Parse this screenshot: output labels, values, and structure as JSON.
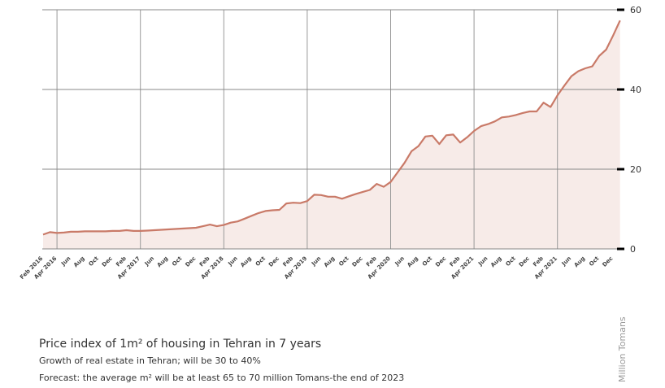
{
  "chart_data": {
    "type": "line",
    "title": "Price index of 1m² of housing in Tehran in 7 years",
    "subtitle": "Growth of real estate in Tehran; will be 30 to 40%",
    "annotation": "Forecast: the average m² will be at least 65 to 70 million Tomans-the end of 2023",
    "y_label": "Million Tomans",
    "categories": [
      "Feb 2016",
      null,
      "Apr 2016",
      null,
      "Jun",
      null,
      "Aug",
      null,
      "Oct",
      null,
      "Dec",
      null,
      "Feb",
      null,
      "Apr 2017",
      null,
      "Jun",
      null,
      "Aug",
      null,
      "Oct",
      null,
      "Dec",
      null,
      "Feb",
      null,
      "Apr 2018",
      null,
      "Jun",
      null,
      "Aug",
      null,
      "Oct",
      null,
      "Dec",
      null,
      "Feb",
      null,
      "Apr 2019",
      null,
      "Jun",
      null,
      "Aug",
      null,
      "Oct",
      null,
      "Dec",
      null,
      "Feb",
      null,
      "Apr 2020",
      null,
      "Jun",
      null,
      "Aug",
      null,
      "Oct",
      null,
      "Dec",
      null,
      "Feb",
      null,
      "Apr 2021",
      null,
      "Jun",
      null,
      "Aug",
      null,
      "Oct",
      null,
      "Dec",
      null,
      "Feb",
      null,
      "Apr 2021",
      null,
      "Jun",
      null,
      "Aug",
      null,
      "Oct",
      null,
      "Dec",
      null
    ],
    "values": [
      3.6,
      4.2,
      4.0,
      4.1,
      4.3,
      4.3,
      4.4,
      4.4,
      4.4,
      4.4,
      4.5,
      4.5,
      4.7,
      4.5,
      4.5,
      4.6,
      4.7,
      4.8,
      4.9,
      5.0,
      5.1,
      5.2,
      5.3,
      5.7,
      6.1,
      5.7,
      6.0,
      6.6,
      6.9,
      7.6,
      8.3,
      9.0,
      9.5,
      9.7,
      9.8,
      11.4,
      11.6,
      11.5,
      12.0,
      13.6,
      13.5,
      13.1,
      13.1,
      12.6,
      13.2,
      13.8,
      14.3,
      14.8,
      16.3,
      15.6,
      16.8,
      19.2,
      21.6,
      24.5,
      25.8,
      28.2,
      28.4,
      26.3,
      28.5,
      28.7,
      26.7,
      28.0,
      29.6,
      30.8,
      31.3,
      32.0,
      33.0,
      33.2,
      33.6,
      34.1,
      34.5,
      34.5,
      36.7,
      35.6,
      38.5,
      41.0,
      43.3,
      44.6,
      45.3,
      45.8,
      48.4,
      50.0,
      53.5,
      57.3
    ],
    "color": "#c97a68",
    "fill": "#f7ebe8",
    "ylim": [
      0,
      60
    ],
    "yticks": [
      0,
      20,
      40,
      60
    ],
    "grid": true
  }
}
